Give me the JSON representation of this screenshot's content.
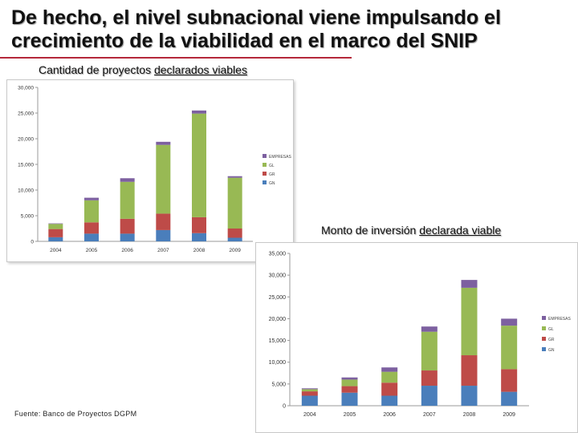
{
  "title": "De hecho, el nivel subnacional viene impulsando el crecimiento de la viabilidad en el marco del SNIP",
  "caption1": {
    "prefix": "Cantidad de proyectos ",
    "underlined": "declarados viables"
  },
  "caption2": {
    "prefix": "Monto de inversión ",
    "underlined": "declarada viable"
  },
  "source": "Fuente: Banco de Proyectos DGPM",
  "colors": {
    "GN": "#4a7ebb",
    "GR": "#be4b48",
    "GL": "#98b954",
    "EMPRESAS": "#7d60a0"
  },
  "chart_data": [
    {
      "type": "bar",
      "stacked": true,
      "title": "Cantidad de proyectos declarados viables",
      "categories": [
        "2004",
        "2005",
        "2006",
        "2007",
        "2008",
        "2009"
      ],
      "ylim": [
        0,
        30000
      ],
      "yticks": [
        "0",
        "5,000",
        "10,000",
        "15,000",
        "20,000",
        "25,000",
        "30,000"
      ],
      "legend_position": "right",
      "series": [
        {
          "name": "GN",
          "values": [
            800,
            1500,
            1500,
            2200,
            1600,
            700
          ]
        },
        {
          "name": "GR",
          "values": [
            1600,
            2200,
            2900,
            3200,
            3100,
            1800
          ]
        },
        {
          "name": "GL",
          "values": [
            1000,
            4300,
            7200,
            13400,
            20200,
            9900
          ]
        },
        {
          "name": "EMPRESAS",
          "values": [
            100,
            500,
            700,
            600,
            600,
            300
          ]
        }
      ],
      "legend": [
        "EMPRESAS",
        "GL",
        "GR",
        "GN"
      ]
    },
    {
      "type": "bar",
      "stacked": true,
      "title": "Monto de inversión declarada viable",
      "categories": [
        "2004",
        "2005",
        "2006",
        "2007",
        "2008",
        "2009"
      ],
      "ylim": [
        0,
        35000
      ],
      "yticks": [
        "0",
        "5,000",
        "10,000",
        "15,000",
        "20,000",
        "25,000",
        "30,000",
        "35,000"
      ],
      "legend_position": "right",
      "series": [
        {
          "name": "GN",
          "values": [
            2300,
            3000,
            2300,
            4600,
            4600,
            3200
          ]
        },
        {
          "name": "GR",
          "values": [
            1000,
            1500,
            3000,
            3500,
            7000,
            5200
          ]
        },
        {
          "name": "GL",
          "values": [
            500,
            1500,
            2500,
            8900,
            15500,
            10000
          ]
        },
        {
          "name": "EMPRESAS",
          "values": [
            200,
            500,
            1000,
            1200,
            1800,
            1600
          ]
        }
      ],
      "legend": [
        "EMPRESAS",
        "GL",
        "GR",
        "GN"
      ]
    }
  ]
}
